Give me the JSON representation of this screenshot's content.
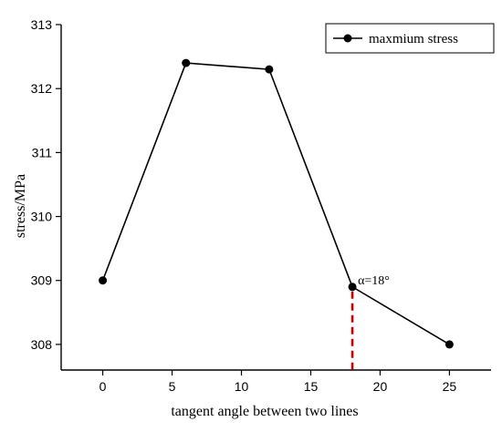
{
  "chart_data": {
    "type": "line",
    "title": "",
    "xlabel": "tangent angle between two lines",
    "ylabel": "stress/MPa",
    "xlim": [
      -3,
      28
    ],
    "ylim": [
      307.6,
      313
    ],
    "xticks": [
      0,
      5,
      10,
      15,
      20,
      25
    ],
    "yticks": [
      308,
      309,
      310,
      311,
      312,
      313
    ],
    "grid": false,
    "legend_position": "top-right",
    "series": [
      {
        "name": "maxmium stress",
        "color": "#000000",
        "marker": "circle",
        "x": [
          0,
          6,
          12,
          18,
          25
        ],
        "y": [
          309,
          312.4,
          312.3,
          308.9,
          308
        ]
      }
    ],
    "annotations": [
      {
        "text": "α=18°",
        "x": 18,
        "y": 308.9,
        "vertical_line_color": "#cc0000",
        "vertical_line_style": "dashed"
      }
    ]
  }
}
